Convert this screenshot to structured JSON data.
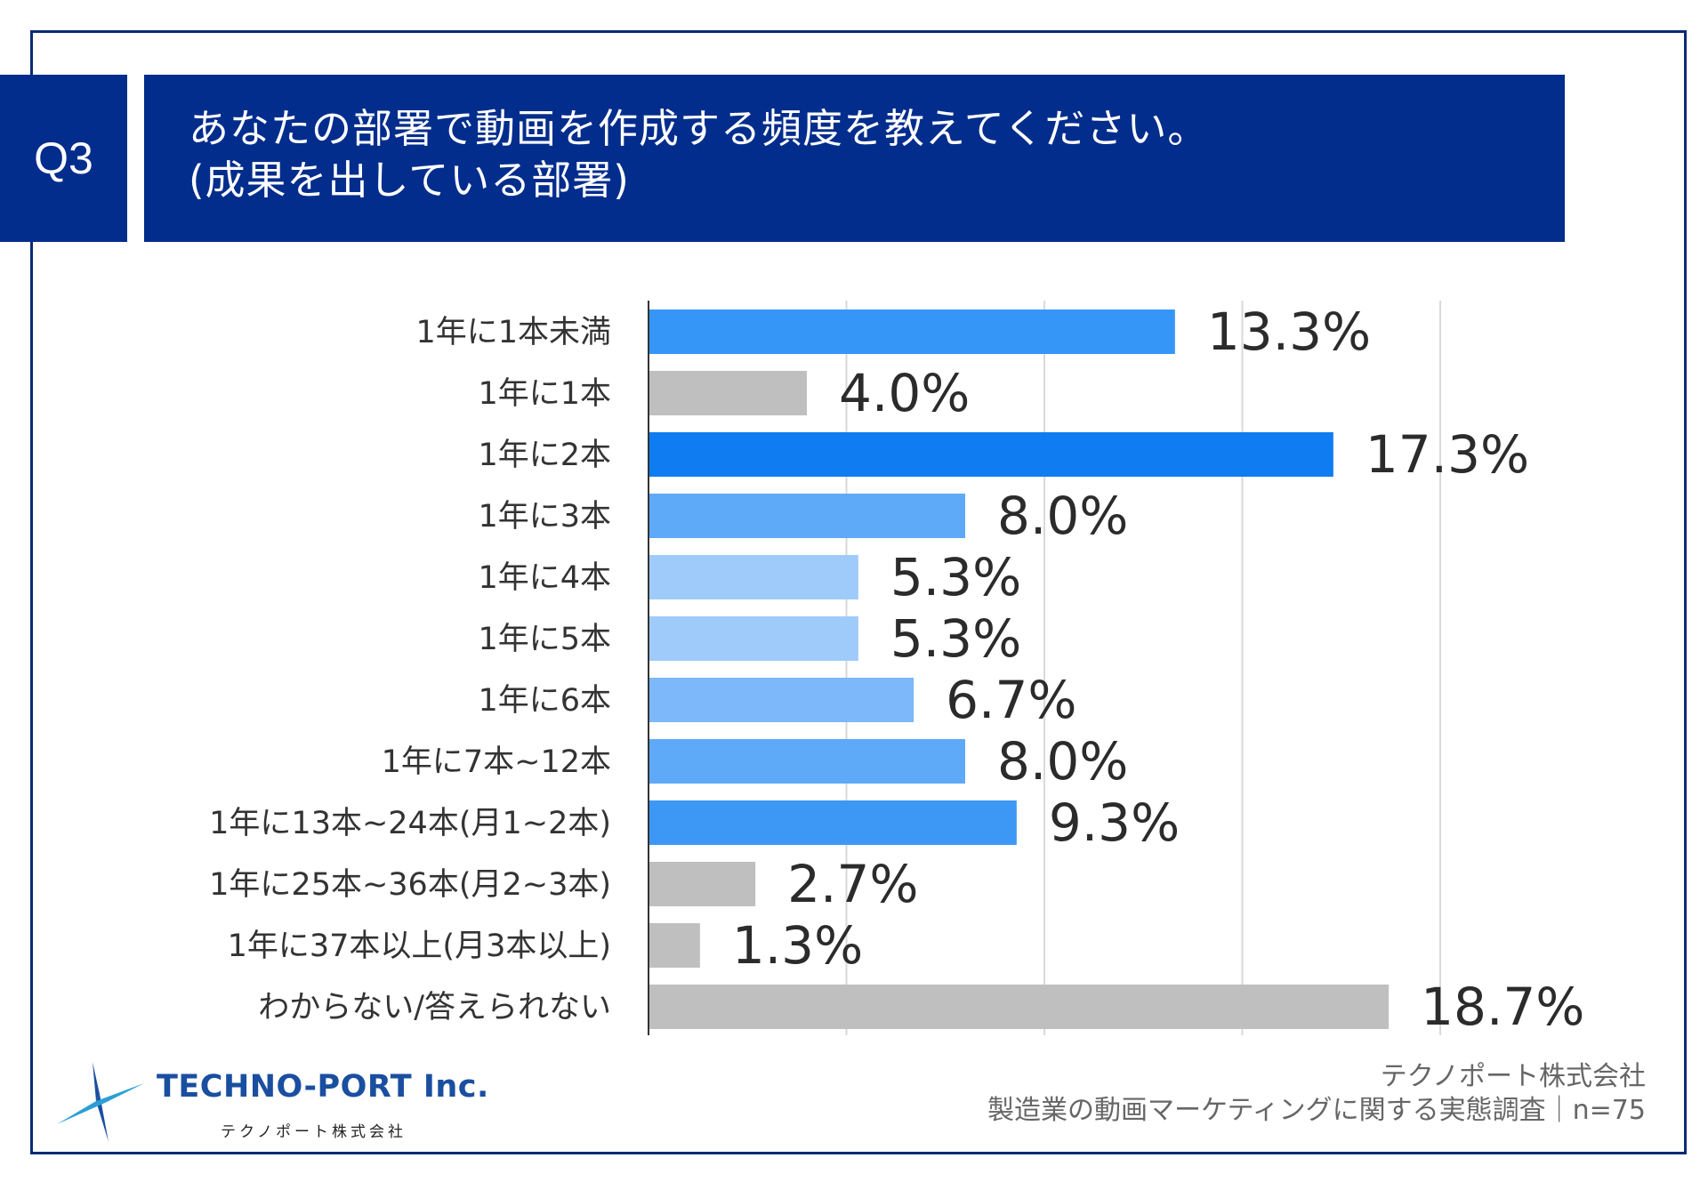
{
  "question": {
    "badge": "Q3",
    "title_line1": "あなたの部署で動画を作成する頻度を教えてください。",
    "title_line2": "(成果を出している部署)"
  },
  "colors": {
    "frame": "#0a2a78",
    "header_bg": "#022d8c",
    "gray_bar": "#bfbfbf",
    "grid": "#d9d9d9"
  },
  "chart_data": {
    "type": "bar",
    "orientation": "horizontal",
    "title": "あなたの部署で動画を作成する頻度を教えてください。(成果を出している部署)",
    "xlim": [
      0,
      20
    ],
    "grid": true,
    "unit": "%",
    "categories": [
      "1年に1本未満",
      "1年に1本",
      "1年に2本",
      "1年に3本",
      "1年に4本",
      "1年に5本",
      "1年に6本",
      "1年に7本~12本",
      "1年に13本~24本(月1~2本)",
      "1年に25本~36本(月2~3本)",
      "1年に37本以上(月3本以上)",
      "わからない/答えられない"
    ],
    "values": [
      13.3,
      4.0,
      17.3,
      8.0,
      5.3,
      5.3,
      6.7,
      8.0,
      9.3,
      2.7,
      1.3,
      18.7
    ],
    "value_labels": [
      "13.3%",
      "4.0%",
      "17.3%",
      "8.0%",
      "5.3%",
      "5.3%",
      "6.7%",
      "8.0%",
      "9.3%",
      "2.7%",
      "1.3%",
      "18.7%"
    ],
    "bar_colors": [
      "#3596f7",
      "#bfbfbf",
      "#0f7cf2",
      "#5ea9f8",
      "#9fcbfb",
      "#9fcbfb",
      "#7db8fa",
      "#5ea9f8",
      "#3d98f5",
      "#bfbfbf",
      "#bfbfbf",
      "#bfbfbf"
    ]
  },
  "logo": {
    "name": "TECHNO-PORT Inc.",
    "subtitle": "テクノポート株式会社"
  },
  "footer": {
    "company": "テクノポート株式会社",
    "survey": "製造業の動画マーケティングに関する実態調査｜n=75"
  }
}
